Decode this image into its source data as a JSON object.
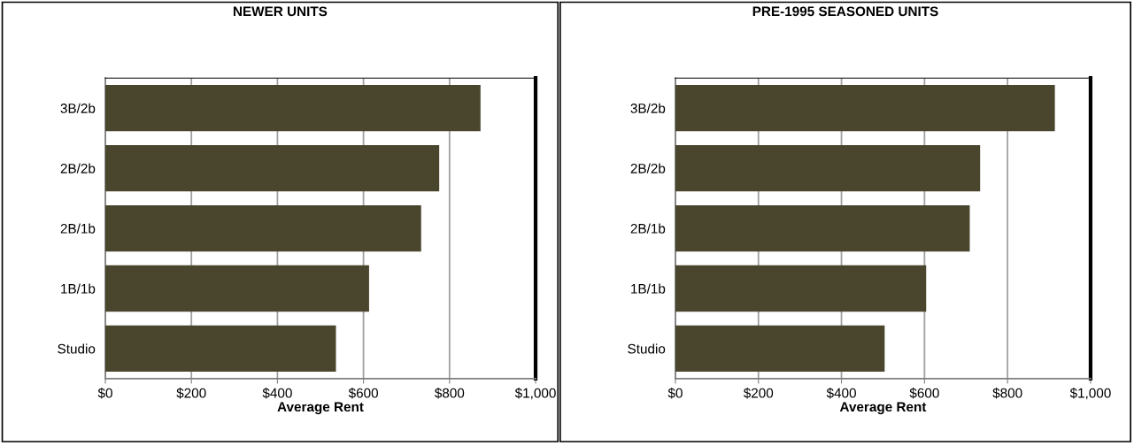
{
  "chart_data": [
    {
      "type": "bar",
      "orientation": "horizontal",
      "title": "NEWER UNITS",
      "xlabel": "Average Rent",
      "categories": [
        "3B/2b",
        "2B/2b",
        "2B/1b",
        "1B/1b",
        "Studio"
      ],
      "values": [
        872,
        776,
        734,
        613,
        536
      ],
      "color": "#4a452d",
      "xlim": [
        0,
        1000
      ],
      "xticks": [
        {
          "value": 0,
          "label": "$0"
        },
        {
          "value": 200,
          "label": "$200"
        },
        {
          "value": 400,
          "label": "$400"
        },
        {
          "value": 600,
          "label": "$600"
        },
        {
          "value": 800,
          "label": "$800"
        },
        {
          "value": 1000,
          "label": "$1,000"
        }
      ],
      "grid": "x",
      "legend": false
    },
    {
      "type": "bar",
      "orientation": "horizontal",
      "title": "PRE-1995 SEASONED UNITS",
      "xlabel": "Average Rent",
      "categories": [
        "3B/2b",
        "2B/2b",
        "2B/1b",
        "1B/1b",
        "Studio"
      ],
      "values": [
        914,
        734,
        709,
        604,
        504
      ],
      "color": "#4a452d",
      "xlim": [
        0,
        1000
      ],
      "xticks": [
        {
          "value": 0,
          "label": "$0"
        },
        {
          "value": 200,
          "label": "$200"
        },
        {
          "value": 400,
          "label": "$400"
        },
        {
          "value": 600,
          "label": "$600"
        },
        {
          "value": 800,
          "label": "$800"
        },
        {
          "value": 1000,
          "label": "$1,000"
        }
      ],
      "grid": "x",
      "legend": false
    }
  ]
}
